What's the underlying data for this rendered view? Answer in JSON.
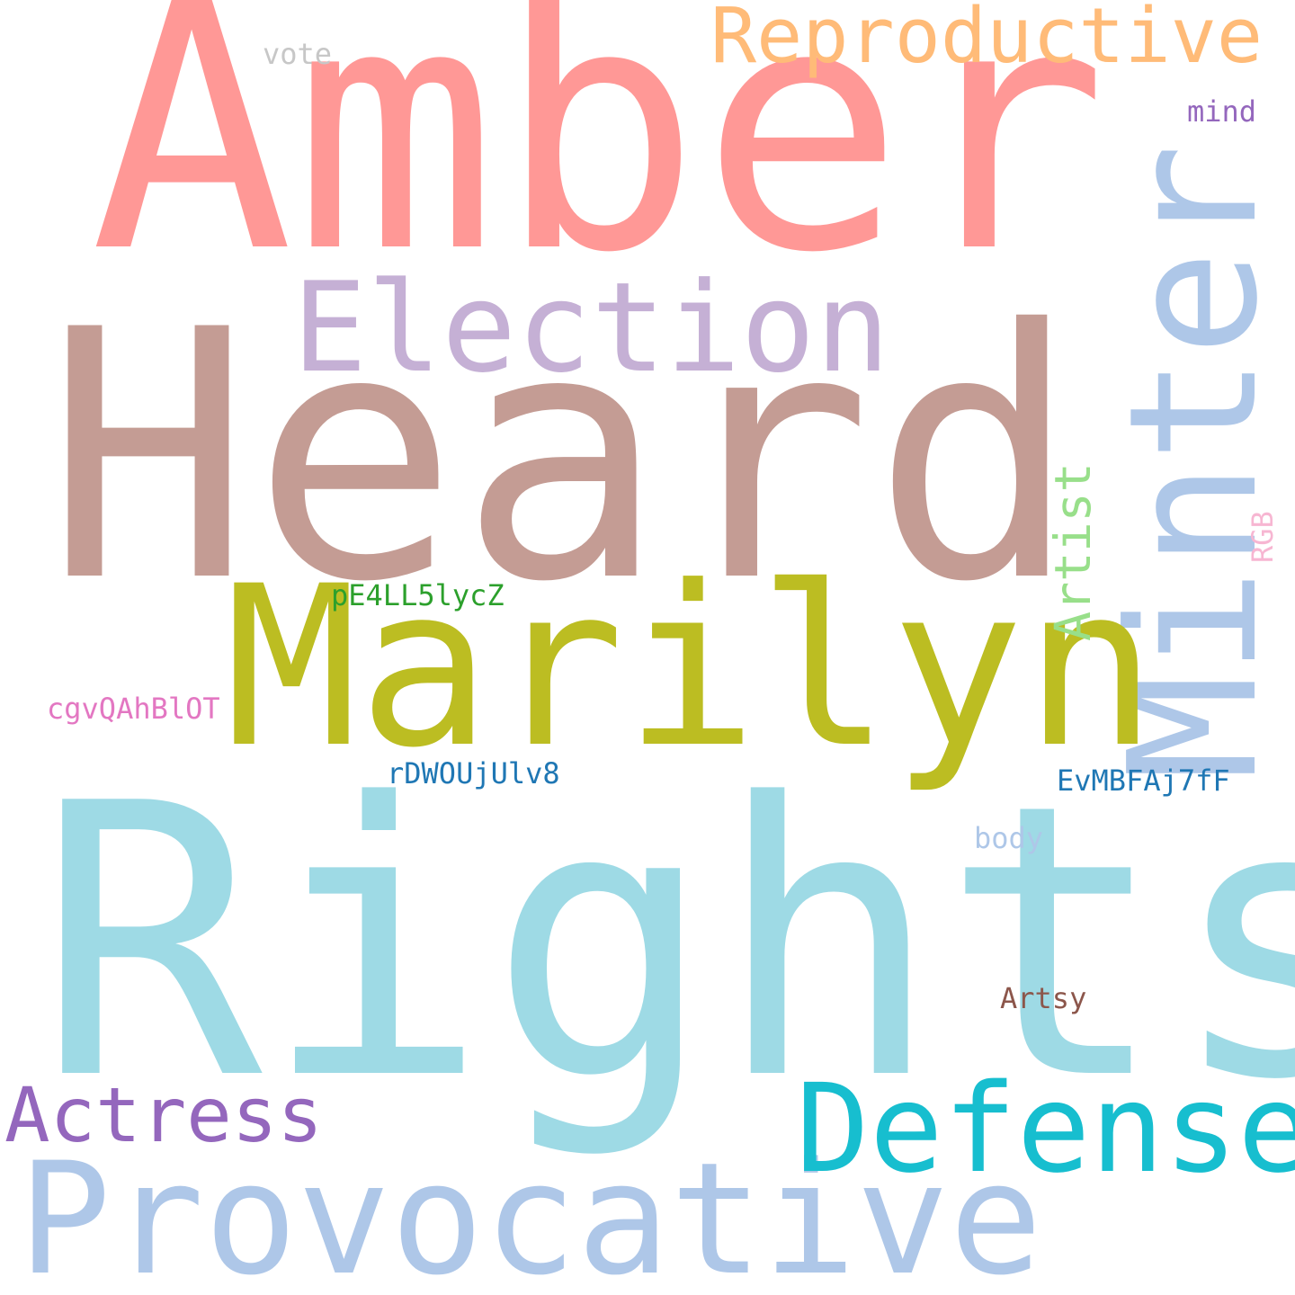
{
  "words": {
    "heard": {
      "text": "Heard",
      "color": "#c49c94"
    },
    "rights": {
      "text": "Rights",
      "color": "#9edae5"
    },
    "amber": {
      "text": "Amber",
      "color": "#ff9896"
    },
    "minter": {
      "text": "Minter",
      "color": "#aec7e8"
    },
    "marilyn": {
      "text": "Marilyn",
      "color": "#bcbd22"
    },
    "provocative": {
      "text": "Provocative",
      "color": "#aec7e8"
    },
    "election": {
      "text": "Election",
      "color": "#c5b0d5"
    },
    "defense": {
      "text": "Defense",
      "color": "#17becf"
    },
    "reproductive": {
      "text": "Reproductive",
      "color": "#ffbb78"
    },
    "actress": {
      "text": "Actress",
      "color": "#9467bd"
    },
    "artist": {
      "text": "Artist",
      "color": "#98df8a"
    },
    "pe4": {
      "text": "pE4LL5lycZ",
      "color": "#2ca02c"
    },
    "cgv": {
      "text": "cgvQAhBlOT",
      "color": "#e377c2"
    },
    "rdw": {
      "text": "rDWOUjUlv8",
      "color": "#1f77b4"
    },
    "evm": {
      "text": "EvMBFAj7fF",
      "color": "#1f77b4"
    },
    "vote": {
      "text": "vote",
      "color": "#c7c7c7"
    },
    "mind": {
      "text": "mind",
      "color": "#9467bd"
    },
    "body": {
      "text": "body",
      "color": "#aec7e8"
    },
    "artsy": {
      "text": "Artsy",
      "color": "#8c564b"
    },
    "rgb": {
      "text": "RGB",
      "color": "#f7b6d2"
    }
  }
}
